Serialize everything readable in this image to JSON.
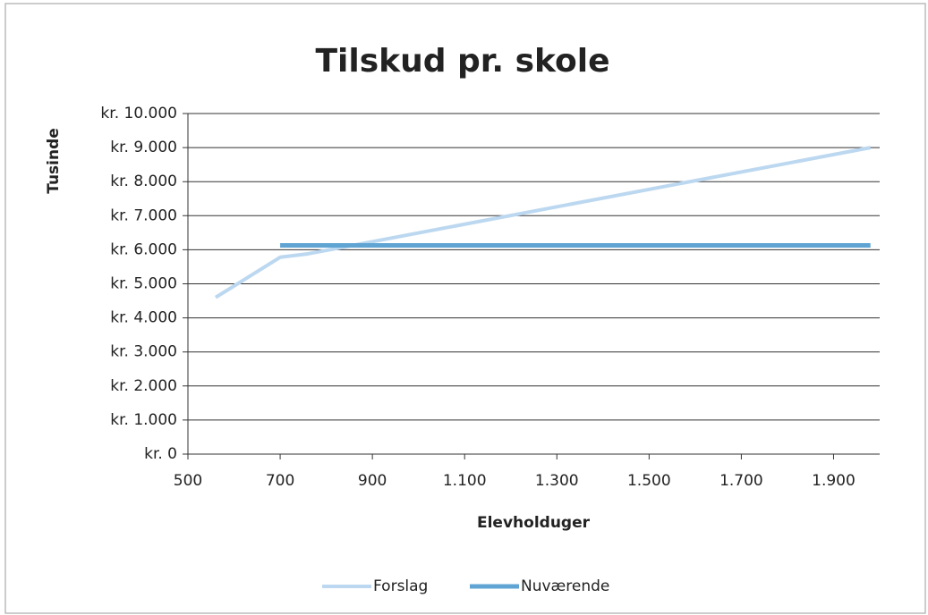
{
  "chart_data": {
    "type": "line",
    "title": "Tilskud pr. skole",
    "xlabel": "Elevholduger",
    "ylabel": "Tusinde",
    "series": [
      {
        "name": "Forslag",
        "color": "#bcd8f0",
        "x": [
          560,
          700,
          760,
          1980
        ],
        "values": [
          4600,
          5780,
          5880,
          9000
        ]
      },
      {
        "name": "Nuværende",
        "color": "#5fa4d2",
        "x": [
          700,
          1980
        ],
        "values": [
          6130,
          6130
        ]
      }
    ],
    "xlim": [
      500,
      2000
    ],
    "xticks": [
      500,
      700,
      900,
      {
        "value": 1100,
        "label": "1.100"
      },
      {
        "value": 1300,
        "label": "1.300"
      },
      {
        "value": 1500,
        "label": "1.500"
      },
      {
        "value": 1700,
        "label": "1.700"
      },
      {
        "value": 1900,
        "label": "1.900"
      }
    ],
    "ylim": [
      0,
      10000
    ],
    "yticks": [
      {
        "value": 0,
        "label": "kr. 0"
      },
      {
        "value": 1000,
        "label": "kr. 1.000"
      },
      {
        "value": 2000,
        "label": "kr. 2.000"
      },
      {
        "value": 3000,
        "label": "kr. 3.000"
      },
      {
        "value": 4000,
        "label": "kr. 4.000"
      },
      {
        "value": 5000,
        "label": "kr. 5.000"
      },
      {
        "value": 6000,
        "label": "kr. 6.000"
      },
      {
        "value": 7000,
        "label": "kr. 7.000"
      },
      {
        "value": 8000,
        "label": "kr. 8.000"
      },
      {
        "value": 9000,
        "label": "kr. 9.000"
      },
      {
        "value": 10000,
        "label": "kr. 10.000"
      }
    ],
    "grid": true,
    "legend": "bottom"
  }
}
